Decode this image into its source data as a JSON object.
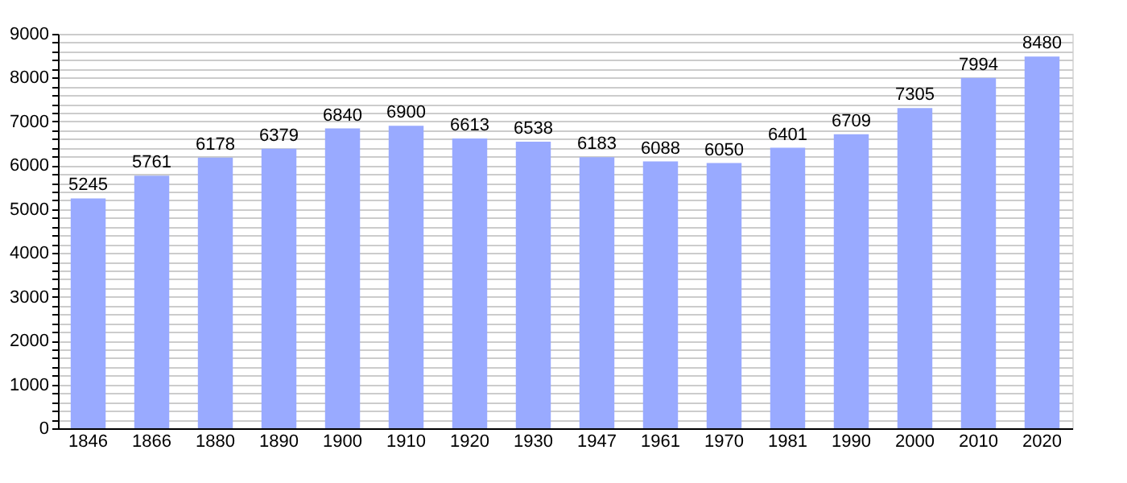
{
  "chart_data": {
    "type": "bar",
    "categories": [
      "1846",
      "1866",
      "1880",
      "1890",
      "1900",
      "1910",
      "1920",
      "1930",
      "1947",
      "1961",
      "1970",
      "1981",
      "1990",
      "2000",
      "2010",
      "2020"
    ],
    "values": [
      5245,
      5761,
      6178,
      6379,
      6840,
      6900,
      6613,
      6538,
      6183,
      6088,
      6050,
      6401,
      6709,
      7305,
      7994,
      8480
    ],
    "color": "#99aaff",
    "ylim": [
      0,
      9000
    ],
    "yticks": [
      0,
      {
        "value": 200,
        "label": null
      },
      {
        "value": 400,
        "label": null
      },
      {
        "value": 600,
        "label": null
      },
      {
        "value": 800,
        "label": null
      },
      1000,
      {
        "value": 1200,
        "label": null
      },
      {
        "value": 1400,
        "label": null
      },
      {
        "value": 1600,
        "label": null
      },
      {
        "value": 1800,
        "label": null
      },
      2000,
      {
        "value": 2200,
        "label": null
      },
      {
        "value": 2400,
        "label": null
      },
      {
        "value": 2600,
        "label": null
      },
      {
        "value": 2800,
        "label": null
      },
      3000,
      {
        "value": 3200,
        "label": null
      },
      {
        "value": 3400,
        "label": null
      },
      {
        "value": 3600,
        "label": null
      },
      {
        "value": 3800,
        "label": null
      },
      4000,
      {
        "value": 4200,
        "label": null
      },
      {
        "value": 4400,
        "label": null
      },
      {
        "value": 4600,
        "label": null
      },
      {
        "value": 4800,
        "label": null
      },
      5000,
      {
        "value": 5200,
        "label": null
      },
      {
        "value": 5400,
        "label": null
      },
      {
        "value": 5600,
        "label": null
      },
      {
        "value": 5800,
        "label": null
      },
      6000,
      {
        "value": 6200,
        "label": null
      },
      {
        "value": 6400,
        "label": null
      },
      {
        "value": 6600,
        "label": null
      },
      {
        "value": 6800,
        "label": null
      },
      7000,
      {
        "value": 7200,
        "label": null
      },
      {
        "value": 7400,
        "label": null
      },
      {
        "value": 7600,
        "label": null
      },
      {
        "value": 7800,
        "label": null
      },
      8000,
      {
        "value": 8200,
        "label": null
      },
      {
        "value": 8400,
        "label": null
      },
      {
        "value": 8600,
        "label": null
      },
      {
        "value": 8800,
        "label": null
      },
      9000
    ],
    "grid": true,
    "data_labels": true
  }
}
